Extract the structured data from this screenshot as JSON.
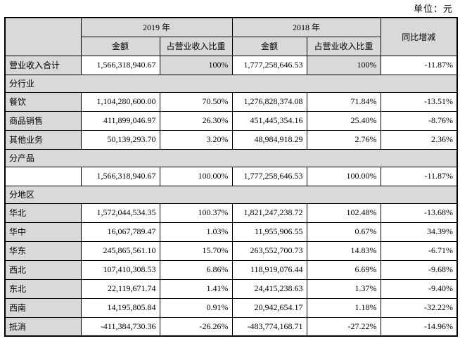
{
  "unit_label": "单位：元",
  "colors": {
    "header_bg": "#d9d9d9",
    "border": "#000000",
    "cell_bg": "#ffffff"
  },
  "table": {
    "header": {
      "blank": "",
      "group_2019": "2019 年",
      "group_2018": "2018 年",
      "yoy": "同比增减",
      "sub": [
        "金额",
        "占营业收入比重",
        "金额",
        "占营业收入比重"
      ]
    },
    "rows": [
      {
        "type": "data",
        "label": "营业收入合计",
        "shade_shares": true,
        "cells": [
          "1,566,318,940.67",
          "100%",
          "1,777,258,646.53",
          "100%",
          "-11.87%"
        ]
      },
      {
        "type": "section",
        "label": "分行业"
      },
      {
        "type": "data",
        "label": "餐饮",
        "cells": [
          "1,104,280,600.00",
          "70.50%",
          "1,276,828,374.08",
          "71.84%",
          "-13.51%"
        ]
      },
      {
        "type": "data",
        "label": "商品销售",
        "cells": [
          "411,899,046.97",
          "26.30%",
          "451,445,354.16",
          "25.40%",
          "-8.76%"
        ]
      },
      {
        "type": "data",
        "label": "其他业务",
        "cells": [
          "50,139,293.70",
          "3.20%",
          "48,984,918.29",
          "2.76%",
          "2.36%"
        ]
      },
      {
        "type": "section",
        "label": "分产品"
      },
      {
        "type": "data",
        "label": "",
        "cells": [
          "1,566,318,940.67",
          "100.00%",
          "1,777,258,646.53",
          "100.00%",
          "-11.87%"
        ]
      },
      {
        "type": "section",
        "label": "分地区"
      },
      {
        "type": "data",
        "label": "华北",
        "cells": [
          "1,572,044,534.35",
          "100.37%",
          "1,821,247,238.72",
          "102.48%",
          "-13.68%"
        ]
      },
      {
        "type": "data",
        "label": "华中",
        "cells": [
          "16,067,789.47",
          "1.03%",
          "11,955,906.55",
          "0.67%",
          "34.39%"
        ]
      },
      {
        "type": "data",
        "label": "华东",
        "cells": [
          "245,865,561.10",
          "15.70%",
          "263,552,700.73",
          "14.83%",
          "-6.71%"
        ]
      },
      {
        "type": "data",
        "label": "西北",
        "cells": [
          "107,410,308.53",
          "6.86%",
          "118,919,076.44",
          "6.69%",
          "-9.68%"
        ]
      },
      {
        "type": "data",
        "label": "东北",
        "cells": [
          "22,119,671.74",
          "1.41%",
          "24,415,238.63",
          "1.37%",
          "-9.40%"
        ]
      },
      {
        "type": "data",
        "label": "西南",
        "cells": [
          "14,195,805.84",
          "0.91%",
          "20,942,654.17",
          "1.18%",
          "-32.22%"
        ]
      },
      {
        "type": "data",
        "label": "抵消",
        "cells": [
          "-411,384,730.36",
          "-26.26%",
          "-483,774,168.71",
          "-27.22%",
          "-14.96%"
        ]
      }
    ]
  }
}
